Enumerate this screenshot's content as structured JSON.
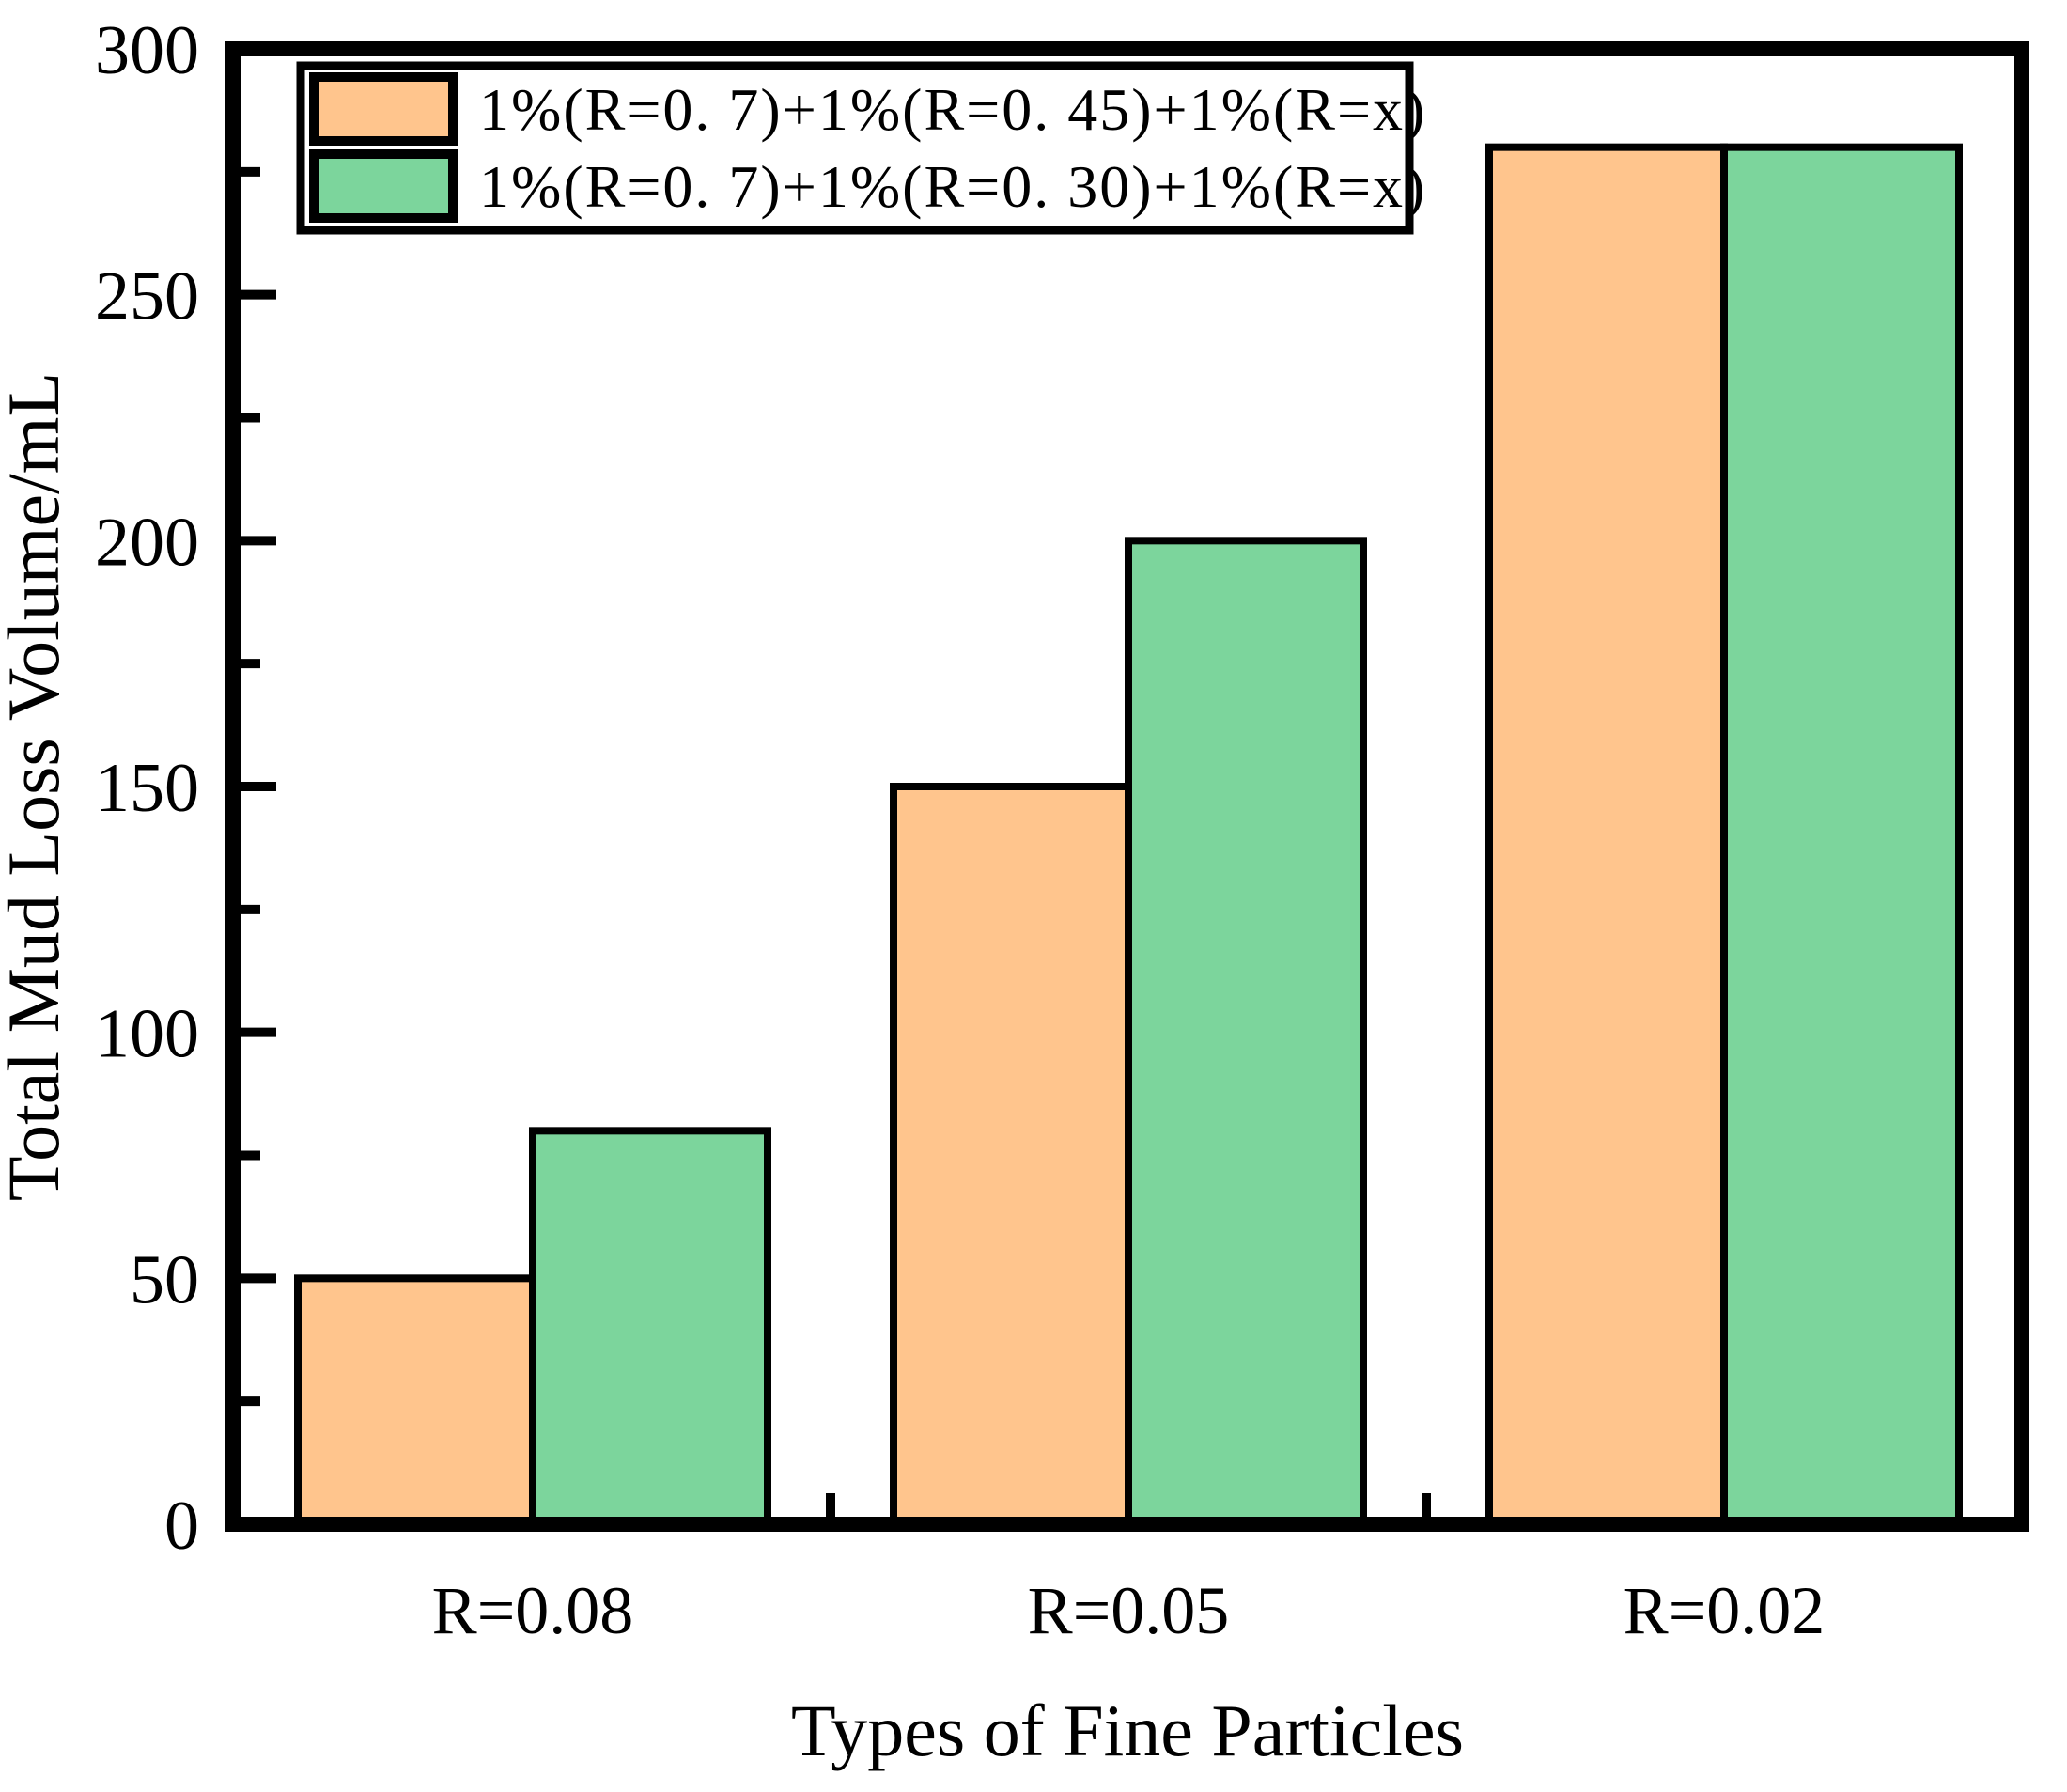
{
  "chart_data": {
    "type": "bar",
    "title": "",
    "xlabel": "Types of Fine Particles",
    "ylabel": "Total Mud Loss Volume/mL",
    "categories": [
      "R=0.08",
      "R=0.05",
      "R=0.02"
    ],
    "series": [
      {
        "name": "1%(R=0. 7)+1%(R=0. 45)+1%(R=x)",
        "color": "#FFC58D",
        "values": [
          50,
          150,
          280
        ]
      },
      {
        "name": "1%(R=0. 7)+1%(R=0. 30)+1%(R=x)",
        "color": "#7CD59C",
        "values": [
          80,
          200,
          280
        ]
      }
    ],
    "ylim": [
      0,
      300
    ],
    "yticks_major": [
      0,
      50,
      100,
      150,
      200,
      250,
      300
    ],
    "yticks_minor": [
      25,
      75,
      125,
      175,
      225,
      275
    ],
    "xticks_minor_between_groups": true,
    "grid": false,
    "legend_position": "top-left",
    "bar_edge_color": "#000000",
    "frame_color": "#000000",
    "background_color": "#ffffff"
  }
}
